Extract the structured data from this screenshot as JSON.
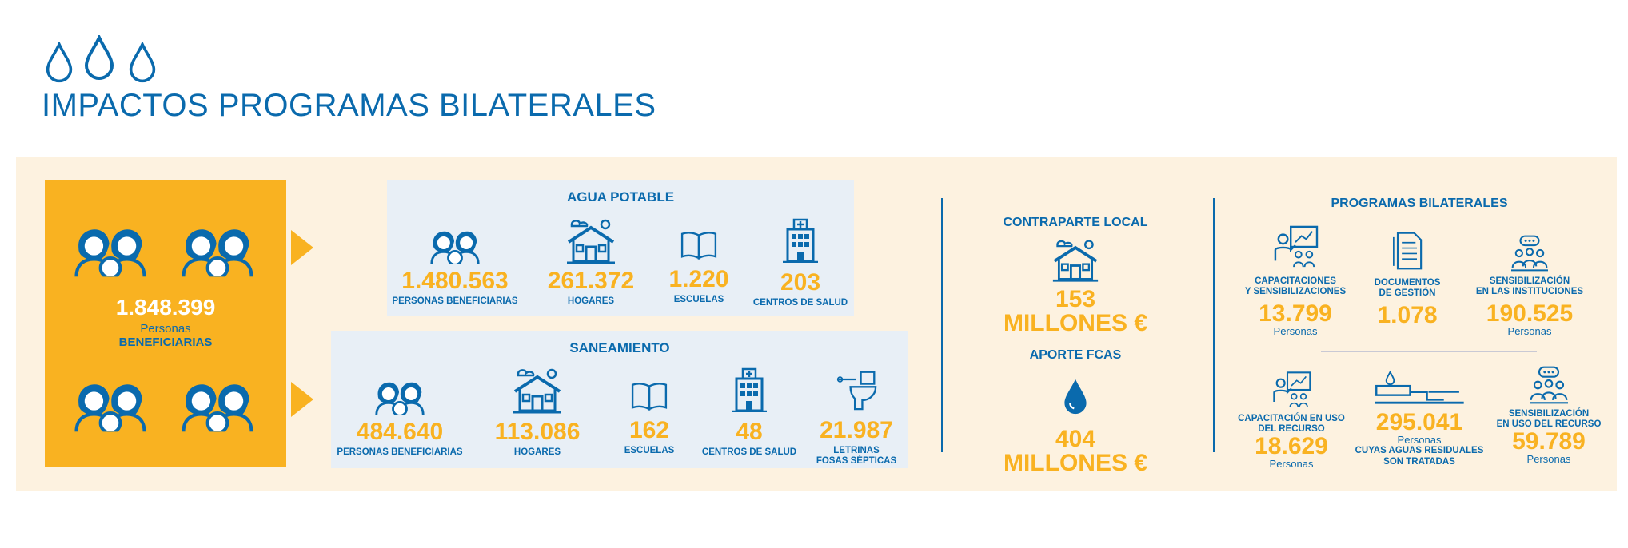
{
  "header": {
    "title": "IMPACTOS PROGRAMAS BILATERALES"
  },
  "icons": {
    "drops": "water-drop-icon",
    "people": "people-group-icon",
    "house": "house-icon",
    "school": "book-icon",
    "health": "hospital-icon",
    "toilet": "toilet-icon",
    "training": "presentation-icon",
    "document": "document-icon",
    "awareness": "meeting-icon",
    "wastewater": "wastewater-plant-icon"
  },
  "colors": {
    "blue": "#0a6aad",
    "orange": "#f9b221",
    "band": "#fdf2e0",
    "panel": "#e8eff6"
  },
  "beneficiaries": {
    "value": "1.848.399",
    "unit": "Personas",
    "label": "BENEFICIARIAS"
  },
  "agua_potable": {
    "title": "AGUA POTABLE",
    "stats": [
      {
        "value": "1.480.563",
        "label": "PERSONAS BENEFICIARIAS"
      },
      {
        "value": "261.372",
        "label": "HOGARES"
      },
      {
        "value": "1.220",
        "label": "ESCUELAS"
      },
      {
        "value": "203",
        "label": "CENTROS DE SALUD"
      }
    ]
  },
  "saneamiento": {
    "title": "SANEAMIENTO",
    "stats": [
      {
        "value": "484.640",
        "label": "PERSONAS BENEFICIARIAS"
      },
      {
        "value": "113.086",
        "label": "HOGARES"
      },
      {
        "value": "162",
        "label": "ESCUELAS"
      },
      {
        "value": "48",
        "label": "CENTROS DE SALUD"
      },
      {
        "value": "21.987",
        "label": "LETRINAS",
        "label2": "FOSAS SÉPTICAS"
      }
    ]
  },
  "funding": {
    "local": {
      "title": "CONTRAPARTE LOCAL",
      "value": "153",
      "unit": "MILLONES €"
    },
    "fcas": {
      "title": "APORTE FCAS",
      "value": "404",
      "unit": "MILLONES €"
    }
  },
  "programas": {
    "title": "PROGRAMAS BILATERALES",
    "top": [
      {
        "label1": "CAPACITACIONES",
        "label2": "Y SENSIBILIZACIONES",
        "value": "13.799",
        "unit": "Personas"
      },
      {
        "label1": "DOCUMENTOS",
        "label2": "DE GESTIÓN",
        "value": "1.078",
        "unit": ""
      },
      {
        "label1": "SENSIBILIZACIÓN",
        "label2": "EN LAS INSTITUCIONES",
        "value": "190.525",
        "unit": "Personas"
      }
    ],
    "bottom": [
      {
        "label1": "CAPACITACIÓN EN USO",
        "label2": "DEL RECURSO",
        "value": "18.629",
        "unit": "Personas"
      },
      {
        "value": "295.041",
        "unit": "Personas",
        "label1": "CUYAS AGUAS RESIDUALES",
        "label2": "SON TRATADAS"
      },
      {
        "label1": "SENSIBILIZACIÓN",
        "label2": "EN USO DEL RECURSO",
        "value": "59.789",
        "unit": "Personas"
      }
    ]
  }
}
